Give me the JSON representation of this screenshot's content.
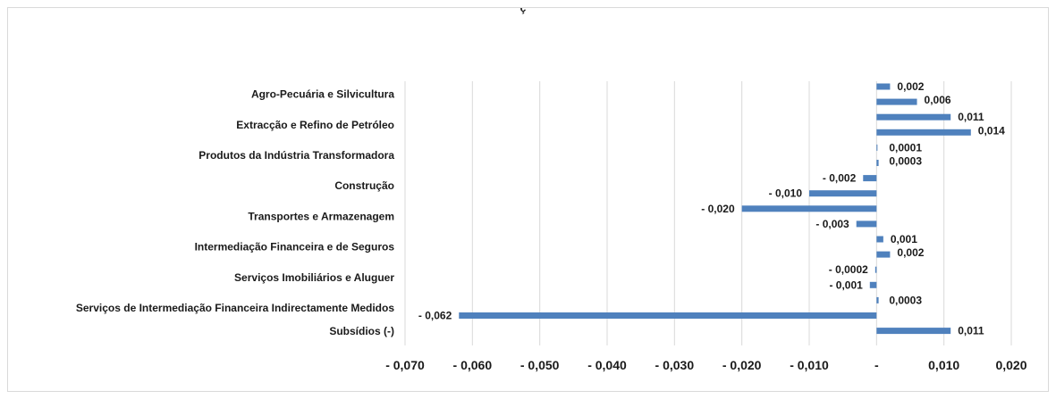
{
  "chart_data": {
    "type": "bar",
    "orientation": "horizontal",
    "title_visible_fragment": "ç",
    "categories": [
      "Agro-Pecuária e Silvicultura",
      "Extracção e Refino de Petróleo",
      "Produtos da Indústria Transformadora",
      "Construção",
      "Transportes e Armazenagem",
      "Intermediação Financeira e de Seguros",
      "Serviços Imobiliários e Aluguer",
      "Serviços de Intermediação Financeira Indirectamente Medidos",
      "Subsídios (-)"
    ],
    "bars": [
      {
        "value": 0.002,
        "label": "0,002"
      },
      {
        "value": 0.006,
        "label": "0,006"
      },
      {
        "value": 0.011,
        "label": "0,011"
      },
      {
        "value": 0.014,
        "label": "0,014"
      },
      {
        "value": 0.0001,
        "label": "0,0001"
      },
      {
        "value": 0.0003,
        "label": "0,0003"
      },
      {
        "value": -0.002,
        "label": "- 0,002"
      },
      {
        "value": -0.01,
        "label": "- 0,010"
      },
      {
        "value": -0.02,
        "label": "- 0,020"
      },
      {
        "value": -0.003,
        "label": "- 0,003"
      },
      {
        "value": 0.001,
        "label": "0,001"
      },
      {
        "value": 0.002,
        "label": "0,002"
      },
      {
        "value": -0.0002,
        "label": "- 0,0002"
      },
      {
        "value": -0.001,
        "label": "- 0,001"
      },
      {
        "value": 0.0003,
        "label": "0,0003"
      },
      {
        "value": -0.062,
        "label": "- 0,062"
      },
      {
        "value": 0.011,
        "label": "0,011"
      }
    ],
    "xlim": [
      -0.07,
      0.02
    ],
    "xticks": [
      {
        "value": -0.07,
        "label": "- 0,070"
      },
      {
        "value": -0.06,
        "label": "- 0,060"
      },
      {
        "value": -0.05,
        "label": "- 0,050"
      },
      {
        "value": -0.04,
        "label": "- 0,040"
      },
      {
        "value": -0.03,
        "label": "- 0,030"
      },
      {
        "value": -0.02,
        "label": "- 0,020"
      },
      {
        "value": -0.01,
        "label": "- 0,010"
      },
      {
        "value": 0.0,
        "label": "-"
      },
      {
        "value": 0.01,
        "label": "0,010"
      },
      {
        "value": 0.02,
        "label": "0,020"
      }
    ],
    "grid": "vertical",
    "legend": "none",
    "colors": {
      "bar": "#4f81bd",
      "grid": "#d9d9d9",
      "text": "#1a1a1a"
    }
  }
}
